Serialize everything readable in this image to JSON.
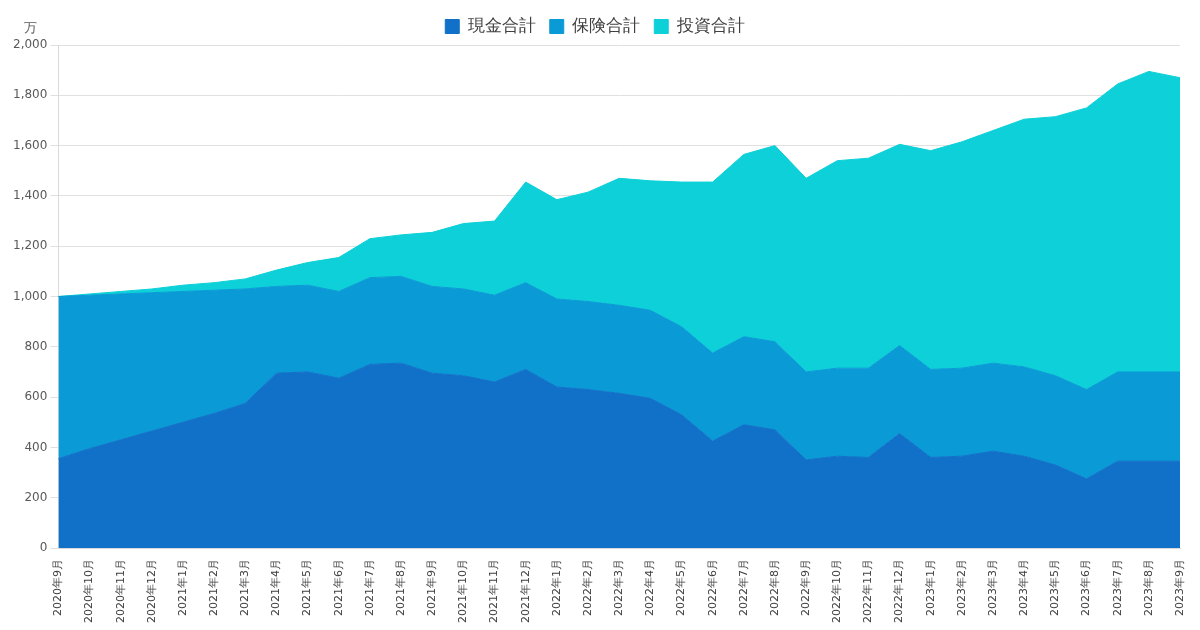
{
  "chart_data": {
    "type": "area",
    "stacked": true,
    "grid": true,
    "legend": "top",
    "y_label": "万",
    "categories": [
      "2020年9月",
      "2020年10月",
      "2020年11月",
      "2020年12月",
      "2021年1月",
      "2021年2月",
      "2021年3月",
      "2021年4月",
      "2021年5月",
      "2021年6月",
      "2021年7月",
      "2021年8月",
      "2021年9月",
      "2021年10月",
      "2021年11月",
      "2021年12月",
      "2022年1月",
      "2022年2月",
      "2022年3月",
      "2022年4月",
      "2022年5月",
      "2022年6月",
      "2022年7月",
      "2022年8月",
      "2022年9月",
      "2022年10月",
      "2022年11月",
      "2022年12月",
      "2023年1月",
      "2023年2月",
      "2023年3月",
      "2023年4月",
      "2023年5月",
      "2023年6月",
      "2023年7月",
      "2023年8月",
      "2023年9月"
    ],
    "series": [
      {
        "name": "現金合計",
        "color": "#1170c8",
        "values": [
          355,
          395,
          430,
          465,
          500,
          535,
          575,
          695,
          700,
          675,
          730,
          735,
          695,
          685,
          660,
          710,
          640,
          630,
          615,
          595,
          530,
          425,
          490,
          470,
          350,
          365,
          360,
          455,
          360,
          365,
          385,
          365,
          330,
          275,
          345,
          345,
          345
        ]
      },
      {
        "name": "保険合計",
        "color": "#0a9ad6",
        "values": [
          645,
          610,
          580,
          550,
          520,
          490,
          455,
          345,
          345,
          345,
          345,
          345,
          345,
          345,
          345,
          345,
          350,
          350,
          350,
          350,
          350,
          350,
          350,
          350,
          350,
          350,
          355,
          350,
          350,
          350,
          350,
          355,
          355,
          355,
          355,
          355,
          355
        ]
      },
      {
        "name": "投資合計",
        "color": "#0dd0d8",
        "values": [
          0,
          5,
          10,
          15,
          25,
          30,
          40,
          65,
          90,
          135,
          155,
          165,
          215,
          260,
          295,
          400,
          395,
          435,
          505,
          515,
          575,
          680,
          725,
          780,
          770,
          825,
          835,
          800,
          870,
          900,
          925,
          985,
          1030,
          1120,
          1145,
          1195,
          1170
        ]
      }
    ],
    "ylim": [
      0,
      2000
    ],
    "yticks": [
      0,
      200,
      400,
      600,
      800,
      {
        "value": 1000,
        "label": "1,000"
      },
      {
        "value": 1200,
        "label": "1,200"
      },
      {
        "value": 1400,
        "label": "1,400"
      },
      {
        "value": 1600,
        "label": "1,600"
      },
      {
        "value": 1800,
        "label": "1,800"
      },
      {
        "value": 2000,
        "label": "2,000"
      }
    ]
  }
}
